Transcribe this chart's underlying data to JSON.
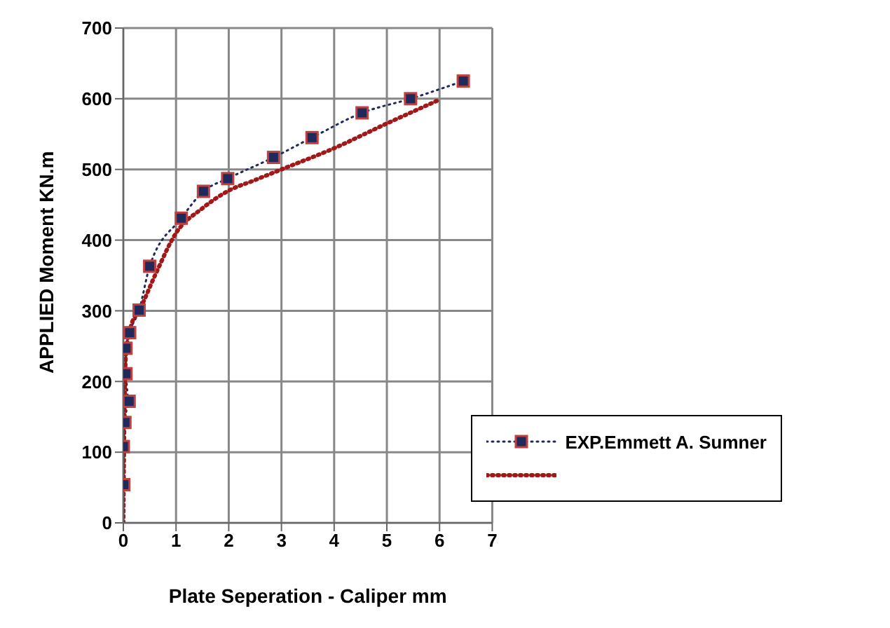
{
  "chart_data": {
    "type": "line",
    "xlabel": "Plate Seperation  - Caliper mm",
    "ylabel": "APPLIED Moment KN.m",
    "xlim": [
      0,
      7
    ],
    "xticks": [
      0,
      1,
      2,
      3,
      4,
      5,
      6,
      7
    ],
    "ylim": [
      0,
      700
    ],
    "yticks": [
      0,
      100,
      200,
      300,
      400,
      500,
      600,
      700
    ],
    "grid": true,
    "legend": "bottom right",
    "series": [
      {
        "name": "EXP.Emmett A. Sumner",
        "color": "#1f2a5a",
        "marker": "square",
        "line_style": "dotted",
        "x": [
          0.01,
          0,
          0.03,
          0.11,
          0.05,
          0.05,
          0.12,
          0.3,
          0.5,
          1.1,
          1.52,
          1.98,
          2.85,
          3.58,
          4.53,
          5.45,
          6.45
        ],
        "values": [
          54,
          108,
          142,
          172,
          211,
          247,
          269,
          301,
          363,
          431,
          469,
          487,
          517,
          545,
          580,
          600,
          625
        ]
      },
      {
        "color": "#a01818",
        "marker": "none",
        "line_style": "dotted",
        "x": [
          0,
          0.02,
          0.05,
          0.15,
          0.3,
          0.6,
          1,
          1.5,
          2,
          2.5,
          3,
          4,
          5,
          5.95
        ],
        "values": [
          0,
          150,
          240,
          280,
          300,
          350,
          410,
          445,
          470,
          485,
          500,
          530,
          565,
          597
        ]
      }
    ]
  }
}
